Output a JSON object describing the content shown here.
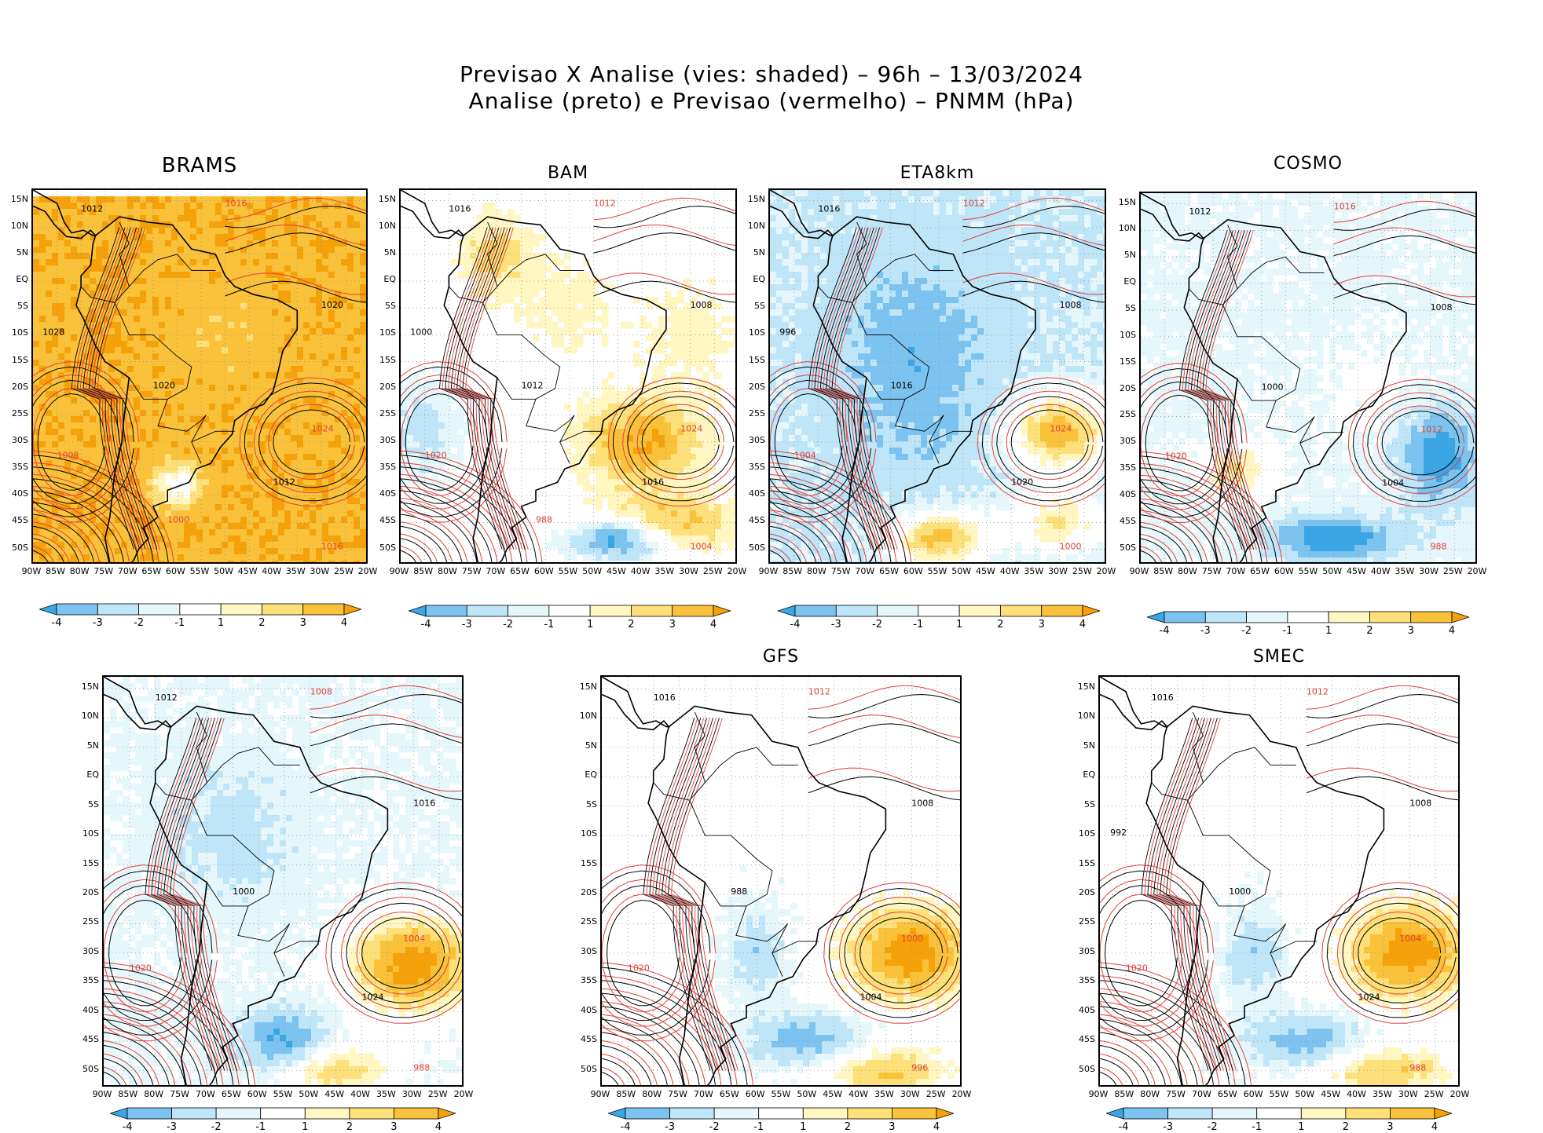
{
  "title": {
    "line1": "Previsao X Analise (vies: shaded) – 96h – 13/03/2024",
    "line2": "Analise (preto) e Previsao (vermelho) – PNMM (hPa)"
  },
  "colors": {
    "analysis_contour": "#000000",
    "forecast_contour": "#e0403a",
    "bias_neg4": "#3aa6e6",
    "bias_neg3": "#7cc3f0",
    "bias_neg2": "#bfe6f8",
    "bias_neg1": "#e6f7fb",
    "bias_zero": "#ffffff",
    "bias_pos1": "#fff6c2",
    "bias_pos2": "#fde07a",
    "bias_pos3": "#f9c23a",
    "bias_pos4": "#f5a10a"
  },
  "axes": {
    "lat_ticks": [
      "15N",
      "10N",
      "5N",
      "EQ",
      "5S",
      "10S",
      "15S",
      "20S",
      "25S",
      "30S",
      "35S",
      "40S",
      "45S",
      "50S"
    ],
    "lon_ticks": [
      "90W",
      "85W",
      "80W",
      "75W",
      "70W",
      "65W",
      "60W",
      "55W",
      "50W",
      "45W",
      "40W",
      "35W",
      "30W",
      "25W",
      "20W"
    ]
  },
  "colorbar": {
    "labels": [
      "-4",
      "-3",
      "-2",
      "-1",
      "1",
      "2",
      "3",
      "4"
    ]
  },
  "panels": [
    {
      "id": "brams",
      "title": "BRAMS",
      "bias": "warm-strong",
      "labels": [
        "1012",
        "1016",
        "1020",
        "1008",
        "1012",
        "1024",
        "1020",
        "1016",
        "1028",
        "1000"
      ]
    },
    {
      "id": "bam",
      "title": "BAM",
      "bias": "mixed",
      "labels": [
        "1016",
        "1012",
        "1008",
        "1020",
        "1016",
        "1024",
        "1012",
        "1004",
        "1000",
        "988"
      ]
    },
    {
      "id": "eta8km",
      "title": "ETA8km",
      "bias": "cool",
      "labels": [
        "1016",
        "1012",
        "1008",
        "1004",
        "1020",
        "1024",
        "1016",
        "1000",
        "996"
      ]
    },
    {
      "id": "cosmo",
      "title": "COSMO",
      "bias": "cool-mixed",
      "labels": [
        "1012",
        "1016",
        "1008",
        "1020",
        "1004",
        "1012",
        "1000",
        "988"
      ]
    },
    {
      "id": "wrf",
      "title": "",
      "bias": "mixed2",
      "labels": [
        "1012",
        "1008",
        "1016",
        "1020",
        "1024",
        "1004",
        "1000",
        "988"
      ]
    },
    {
      "id": "gfs",
      "title": "GFS",
      "bias": "mixed3",
      "labels": [
        "1016",
        "1012",
        "1008",
        "1020",
        "1004",
        "1000",
        "988",
        "996"
      ]
    },
    {
      "id": "smec",
      "title": "SMEC",
      "bias": "mixed3",
      "labels": [
        "1016",
        "1012",
        "1008",
        "1020",
        "1024",
        "1004",
        "1000",
        "988",
        "992"
      ]
    }
  ]
}
